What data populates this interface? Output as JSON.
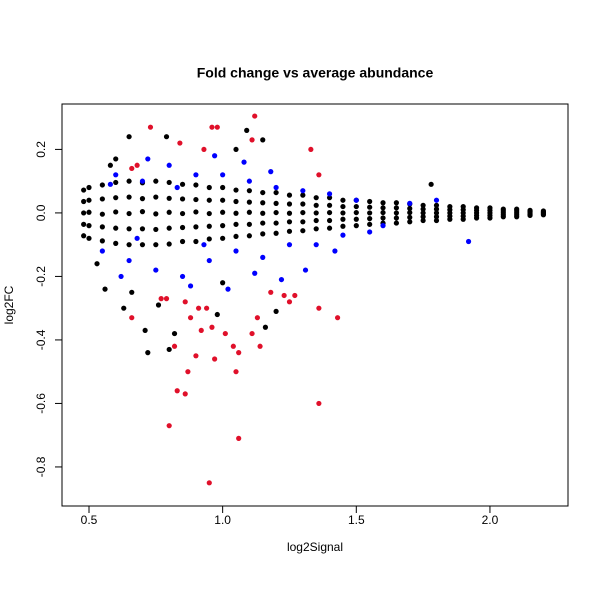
{
  "chart_data": {
    "type": "scatter",
    "title": "Fold change vs average abundance",
    "x_label": "log2Signal",
    "y_label": "log2FC",
    "xlim": [
      0.399,
      2.292
    ],
    "ylim": [
      -0.923,
      0.343
    ],
    "xticks": [
      0.5,
      {
        "value": 1,
        "label": "1.0"
      },
      1.5,
      {
        "value": 2,
        "label": "2.0"
      }
    ],
    "yticks": [
      -0.8,
      -0.6,
      -0.4,
      -0.2,
      {
        "value": 0,
        "label": "0.0"
      },
      0.2
    ],
    "series": [
      {
        "color": "#000000",
        "x": [
          0.48,
          0.48,
          0.48,
          0.48,
          0.48,
          0.5,
          0.5,
          0.5,
          0.5,
          0.5,
          0.55,
          0.55,
          0.55,
          0.55,
          0.55,
          0.6,
          0.6,
          0.6,
          0.6,
          0.6,
          0.65,
          0.65,
          0.65,
          0.65,
          0.65,
          0.7,
          0.7,
          0.7,
          0.7,
          0.7,
          0.75,
          0.75,
          0.75,
          0.75,
          0.75,
          0.8,
          0.8,
          0.8,
          0.8,
          0.8,
          0.85,
          0.85,
          0.85,
          0.85,
          0.85,
          0.9,
          0.9,
          0.9,
          0.9,
          0.9,
          0.95,
          0.95,
          0.95,
          0.95,
          0.95,
          1.0,
          1.0,
          1.0,
          1.0,
          1.0,
          1.05,
          1.05,
          1.05,
          1.05,
          1.05,
          1.1,
          1.1,
          1.1,
          1.1,
          1.1,
          1.15,
          1.15,
          1.15,
          1.15,
          1.15,
          1.2,
          1.2,
          1.2,
          1.2,
          1.2,
          1.25,
          1.25,
          1.25,
          1.25,
          1.25,
          1.3,
          1.3,
          1.3,
          1.3,
          1.3,
          1.35,
          1.35,
          1.35,
          1.35,
          1.35,
          1.4,
          1.4,
          1.4,
          1.4,
          1.4,
          1.45,
          1.45,
          1.45,
          1.45,
          1.45,
          1.5,
          1.5,
          1.5,
          1.5,
          1.5,
          1.55,
          1.55,
          1.55,
          1.55,
          1.55,
          1.6,
          1.6,
          1.6,
          1.6,
          1.6,
          1.65,
          1.65,
          1.65,
          1.65,
          1.65,
          1.7,
          1.7,
          1.7,
          1.7,
          1.7,
          1.75,
          1.75,
          1.75,
          1.75,
          1.75,
          1.8,
          1.8,
          1.8,
          1.8,
          1.8,
          1.85,
          1.85,
          1.85,
          1.85,
          1.85,
          1.9,
          1.9,
          1.9,
          1.9,
          1.9,
          1.95,
          1.95,
          1.95,
          1.95,
          1.95,
          2.0,
          2.0,
          2.0,
          2.0,
          2.0,
          2.05,
          2.05,
          2.05,
          2.05,
          2.05,
          2.1,
          2.1,
          2.1,
          2.1,
          2.1,
          2.15,
          2.15,
          2.15,
          2.15,
          2.15,
          2.2,
          2.2,
          2.2,
          2.2,
          2.2,
          0.63,
          0.71,
          0.72,
          0.66,
          0.56,
          0.8,
          0.82,
          1.16,
          1.2,
          0.76,
          0.98,
          1.09,
          1.15,
          0.79,
          1.78,
          0.58,
          0.65,
          0.53,
          0.6,
          1.0,
          1.05
        ],
        "values": [
          0.072,
          0.036,
          0,
          -0.036,
          -0.072,
          0.08,
          0.04,
          0.002,
          -0.04,
          -0.08,
          0.088,
          0.044,
          -0.004,
          -0.044,
          -0.088,
          0.096,
          0.048,
          0.003,
          -0.048,
          -0.096,
          0.1,
          0.05,
          -0.002,
          -0.05,
          -0.1,
          0.095,
          0.045,
          0.004,
          -0.05,
          -0.1,
          0.1,
          0.05,
          -0.003,
          -0.052,
          -0.1,
          0.096,
          0.046,
          0.002,
          -0.048,
          -0.098,
          0.09,
          0.044,
          -0.002,
          -0.046,
          -0.09,
          0.088,
          0.042,
          0.003,
          -0.044,
          -0.09,
          0.08,
          0.04,
          -0.002,
          -0.042,
          -0.082,
          0.08,
          0.04,
          0.002,
          -0.04,
          -0.08,
          0.072,
          0.036,
          -0.001,
          -0.036,
          -0.074,
          0.07,
          0.034,
          0.002,
          -0.036,
          -0.072,
          0.064,
          0.032,
          -0.001,
          -0.032,
          -0.066,
          0.064,
          0.03,
          0.001,
          -0.032,
          -0.064,
          0.056,
          0.028,
          -0.001,
          -0.028,
          -0.058,
          0.056,
          0.028,
          0.001,
          -0.028,
          -0.056,
          0.048,
          0.024,
          0,
          -0.024,
          -0.05,
          0.048,
          0.024,
          0.001,
          -0.024,
          -0.048,
          0.04,
          0.02,
          0,
          -0.02,
          -0.042,
          0.04,
          0.02,
          0.001,
          -0.02,
          -0.04,
          0.036,
          0.018,
          0,
          -0.018,
          -0.036,
          0.032,
          0.016,
          0.001,
          -0.016,
          -0.032,
          0.032,
          0.016,
          0,
          -0.016,
          -0.032,
          0.028,
          0.014,
          0.001,
          -0.014,
          -0.028,
          0.024,
          0.012,
          0,
          -0.012,
          -0.024,
          0.024,
          0.012,
          0,
          -0.012,
          -0.024,
          0.02,
          0.01,
          0,
          -0.01,
          -0.02,
          0.02,
          0.01,
          0,
          -0.01,
          -0.02,
          0.016,
          0.008,
          0,
          -0.008,
          -0.016,
          0.016,
          0.008,
          0,
          -0.008,
          -0.016,
          0.012,
          0.006,
          0,
          -0.006,
          -0.012,
          0.012,
          0.006,
          0,
          -0.006,
          -0.012,
          0.008,
          0.004,
          0,
          -0.004,
          -0.008,
          0.006,
          0.003,
          0,
          -0.003,
          -0.006,
          -0.3,
          -0.37,
          -0.44,
          -0.25,
          -0.24,
          -0.43,
          -0.38,
          -0.36,
          -0.31,
          -0.29,
          -0.32,
          0.26,
          0.23,
          0.24,
          0.09,
          0.15,
          0.24,
          -0.16,
          0.17,
          -0.22,
          0.2
        ]
      },
      {
        "color": "#0000ff",
        "x": [
          0.6,
          0.65,
          0.7,
          0.75,
          0.8,
          0.85,
          0.9,
          0.95,
          1.0,
          1.05,
          1.1,
          1.15,
          1.2,
          1.25,
          1.3,
          1.35,
          1.4,
          1.45,
          1.5,
          1.6,
          1.7,
          1.92,
          0.55,
          0.62,
          0.88,
          0.97,
          1.02,
          1.12,
          1.22,
          1.31,
          0.72,
          0.83,
          1.08,
          1.18,
          0.58,
          1.42,
          1.55,
          1.8,
          0.68,
          0.93
        ],
        "values": [
          0.12,
          -0.15,
          0.1,
          -0.18,
          0.15,
          -0.2,
          0.12,
          -0.15,
          0.12,
          -0.12,
          0.1,
          -0.14,
          0.08,
          -0.1,
          0.07,
          -0.1,
          0.06,
          -0.07,
          0.04,
          -0.04,
          0.03,
          -0.09,
          -0.12,
          -0.2,
          -0.23,
          0.18,
          -0.24,
          -0.19,
          -0.21,
          -0.18,
          0.17,
          0.08,
          0.16,
          0.13,
          0.09,
          -0.12,
          -0.06,
          0.04,
          -0.08,
          -0.1
        ]
      },
      {
        "color": "#e0102a",
        "x": [
          1.12,
          0.73,
          0.98,
          0.96,
          1.11,
          0.84,
          0.93,
          1.33,
          0.66,
          0.68,
          1.36,
          0.79,
          0.77,
          0.66,
          0.86,
          0.91,
          0.94,
          0.88,
          0.96,
          0.92,
          1.01,
          1.11,
          1.14,
          1.36,
          1.43,
          1.25,
          1.23,
          1.27,
          1.18,
          1.13,
          0.82,
          1.04,
          0.9,
          0.97,
          1.06,
          1.05,
          0.87,
          0.83,
          0.86,
          1.36,
          0.8,
          1.06,
          0.95
        ],
        "values": [
          0.305,
          0.27,
          0.27,
          0.27,
          0.23,
          0.22,
          0.2,
          0.2,
          0.14,
          0.15,
          0.12,
          -0.27,
          -0.27,
          -0.33,
          -0.28,
          -0.3,
          -0.3,
          -0.33,
          -0.36,
          -0.37,
          -0.38,
          -0.38,
          -0.42,
          -0.3,
          -0.33,
          -0.28,
          -0.26,
          -0.26,
          -0.25,
          -0.33,
          -0.42,
          -0.42,
          -0.45,
          -0.46,
          -0.44,
          -0.5,
          -0.5,
          -0.56,
          -0.57,
          -0.6,
          -0.67,
          -0.71,
          -0.85
        ]
      }
    ]
  }
}
